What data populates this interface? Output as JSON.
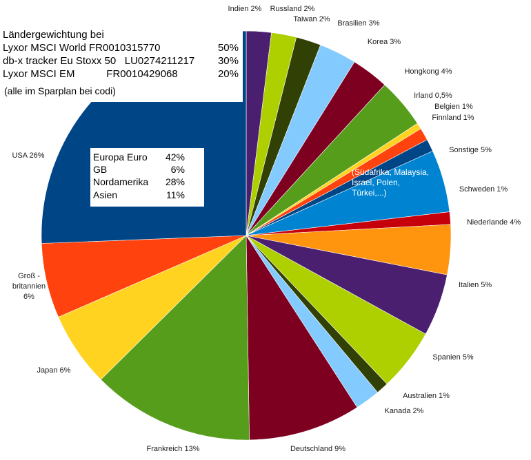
{
  "chart_data": {
    "type": "pie",
    "unit": "%",
    "slices": [
      {
        "label": "Indien 2%",
        "value": 2,
        "color": "#4b1f6f"
      },
      {
        "label": "Russland 2%",
        "value": 2,
        "color": "#aecf00"
      },
      {
        "label": "Taiwan 2%",
        "value": 2,
        "color": "#314004"
      },
      {
        "label": "Brasilien 3%",
        "value": 3,
        "color": "#83caff"
      },
      {
        "label": "Korea 3%",
        "value": 3,
        "color": "#7e0021"
      },
      {
        "label": "Hongkong 4%",
        "value": 4,
        "color": "#579d1c"
      },
      {
        "label": "Irland 0,5%",
        "value": 0.5,
        "color": "#ffd320"
      },
      {
        "label": "Belgien 1%",
        "value": 1,
        "color": "#ff420e"
      },
      {
        "label": "Finnland 1%",
        "value": 1,
        "color": "#004586"
      },
      {
        "label": "Sonstige 5%",
        "value": 5,
        "color": "#0084d1"
      },
      {
        "label": "Schweden 1%",
        "value": 1,
        "color": "#c5000b"
      },
      {
        "label": "Niederlande 4%",
        "value": 4,
        "color": "#ff950e"
      },
      {
        "label": "Italien 5%",
        "value": 5,
        "color": "#4b1f6f"
      },
      {
        "label": "Spanien 5%",
        "value": 5,
        "color": "#aecf00"
      },
      {
        "label": "Australien 1%",
        "value": 1,
        "color": "#314004"
      },
      {
        "label": "Kanada 2%",
        "value": 2,
        "color": "#83caff"
      },
      {
        "label": "Deutschland 9%",
        "value": 9,
        "color": "#7e0021"
      },
      {
        "label": "Frankreich 13%",
        "value": 13,
        "color": "#579d1c"
      },
      {
        "label": "Japan 6%",
        "value": 6,
        "color": "#ffd320"
      },
      {
        "label": "Groß -\nbritannien\n6%",
        "value": 6,
        "color": "#ff420e"
      },
      {
        "label": "USA 26%",
        "value": 26,
        "color": "#004586"
      }
    ],
    "sonstige_note": "(Südafrika, Malaysia,\nIsrael, Polen,\nTürkei,...)",
    "funds_box": {
      "title": "Ländergewichtung bei",
      "rows": [
        {
          "name": "Lyxor MSCI World FR0010315770",
          "weight": "50%"
        },
        {
          "name": "db-x tracker Eu Stoxx 50   LU0274211217",
          "weight": "30%"
        },
        {
          "name": "Lyxor MSCI EM           FR0010429068",
          "weight": "20%"
        }
      ],
      "note": "(alle im Sparplan bei codi)"
    },
    "regions_box": [
      {
        "name": "Europa Euro",
        "value": "42%"
      },
      {
        "name": "GB",
        "value": "6%"
      },
      {
        "name": "Nordamerika",
        "value": "28%"
      },
      {
        "name": "Asien",
        "value": "11%"
      }
    ]
  }
}
